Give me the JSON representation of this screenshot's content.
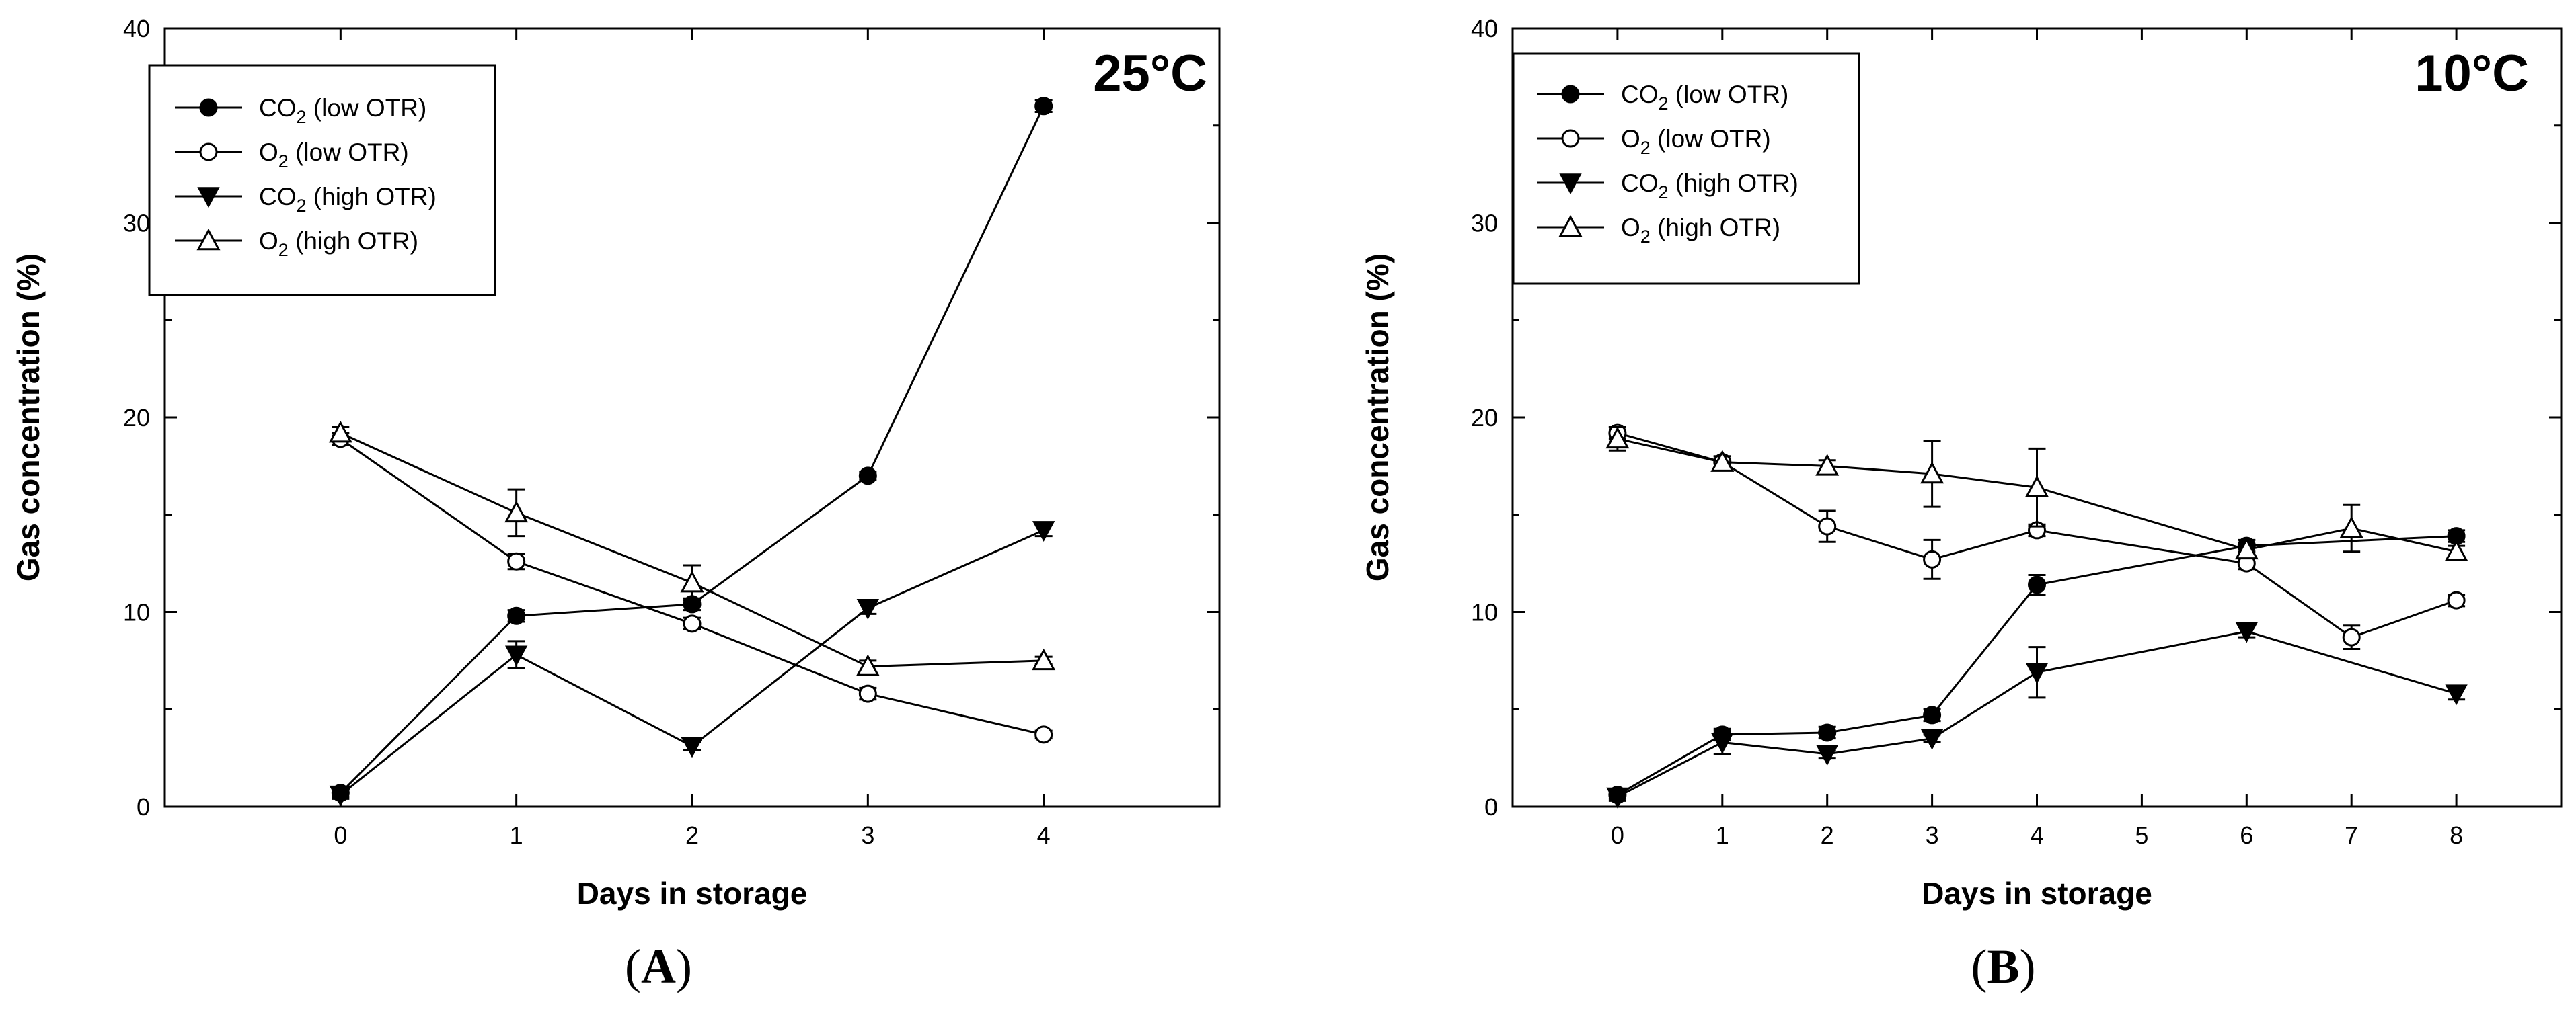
{
  "chart_data": [
    {
      "type": "line",
      "panel_label": "A",
      "panel_letter": "A",
      "annotation": "25°C",
      "xlabel": "Days in storage",
      "ylabel": "Gas concentration (%)",
      "xlim": [
        -1,
        5
      ],
      "ylim": [
        0,
        40
      ],
      "x_ticks": [
        0,
        1,
        2,
        3,
        4
      ],
      "y_ticks": [
        0,
        10,
        20,
        30,
        40
      ],
      "legend": [
        "CO2 (low OTR)",
        "O2 (low OTR)",
        "CO2 (high OTR)",
        "O2 (high OTR)"
      ],
      "legend_parts": [
        {
          "gas": "CO",
          "sub": "2",
          "rest": " (low OTR)"
        },
        {
          "gas": "O",
          "sub": "2",
          "rest": " (low OTR)"
        },
        {
          "gas": "CO",
          "sub": "2",
          "rest": " (high OTR)"
        },
        {
          "gas": "O",
          "sub": "2",
          "rest": " (high OTR)"
        }
      ],
      "series": [
        {
          "name": "CO2 (low OTR)",
          "marker": "circle-filled",
          "x": [
            0,
            1,
            2,
            3,
            4
          ],
          "y": [
            0.7,
            9.8,
            10.4,
            17.0,
            36.0
          ],
          "err": [
            0.2,
            0.3,
            0.3,
            0.2,
            0.3
          ]
        },
        {
          "name": "O2 (low OTR)",
          "marker": "circle-open",
          "x": [
            0,
            1,
            2,
            3,
            4
          ],
          "y": [
            18.9,
            12.6,
            9.4,
            5.8,
            3.7
          ],
          "err": [
            0.3,
            0.4,
            0.3,
            0.3,
            0.2
          ]
        },
        {
          "name": "CO2 (high OTR)",
          "marker": "triangle-down-filled",
          "x": [
            0,
            1,
            2,
            3,
            4
          ],
          "y": [
            0.6,
            7.8,
            3.1,
            10.2,
            14.2
          ],
          "err": [
            0.2,
            0.7,
            0.2,
            0.3,
            0.3
          ]
        },
        {
          "name": "O2 (high OTR)",
          "marker": "triangle-up-open",
          "x": [
            0,
            1,
            2,
            3,
            4
          ],
          "y": [
            19.2,
            15.1,
            11.5,
            7.2,
            7.5
          ],
          "err": [
            0.3,
            1.2,
            0.9,
            0.3,
            0.2
          ]
        }
      ]
    },
    {
      "type": "line",
      "panel_label": "B",
      "panel_letter": "B",
      "annotation": "10°C",
      "xlabel": "Days in storage",
      "ylabel": "Gas concentration (%)",
      "xlim": [
        -1,
        9
      ],
      "ylim": [
        0,
        40
      ],
      "x_ticks": [
        0,
        1,
        2,
        3,
        4,
        5,
        6,
        7,
        8
      ],
      "y_ticks": [
        0,
        10,
        20,
        30,
        40
      ],
      "legend": [
        "CO2 (low OTR)",
        "O2 (low OTR)",
        "CO2 (high OTR)",
        "O2 (high OTR)"
      ],
      "legend_parts": [
        {
          "gas": "CO",
          "sub": "2",
          "rest": " (low OTR)"
        },
        {
          "gas": "O",
          "sub": "2",
          "rest": " (low OTR)"
        },
        {
          "gas": "CO",
          "sub": "2",
          "rest": " (high OTR)"
        },
        {
          "gas": "O",
          "sub": "2",
          "rest": " (high OTR)"
        }
      ],
      "series": [
        {
          "name": "CO2 (low OTR)",
          "marker": "circle-filled",
          "x": [
            0,
            1,
            2,
            3,
            4,
            6,
            8
          ],
          "y": [
            0.6,
            3.7,
            3.8,
            4.7,
            11.4,
            13.4,
            13.9
          ],
          "err": [
            0.2,
            0.3,
            0.3,
            0.3,
            0.5,
            0.3,
            0.3
          ]
        },
        {
          "name": "O2 (low OTR)",
          "marker": "circle-open",
          "x": [
            0,
            1,
            2,
            3,
            4,
            6,
            7,
            8
          ],
          "y": [
            19.2,
            17.7,
            14.4,
            12.7,
            14.2,
            12.5,
            8.7,
            10.6
          ],
          "err": [
            0.3,
            0.3,
            0.8,
            1.0,
            0.3,
            0.3,
            0.6,
            0.3
          ]
        },
        {
          "name": "CO2 (high OTR)",
          "marker": "triangle-down-filled",
          "x": [
            0,
            1,
            2,
            3,
            4,
            6,
            8
          ],
          "y": [
            0.5,
            3.3,
            2.7,
            3.5,
            6.9,
            9.0,
            5.8
          ],
          "err": [
            0.2,
            0.6,
            0.2,
            0.2,
            1.3,
            0.3,
            0.3
          ]
        },
        {
          "name": "O2 (high OTR)",
          "marker": "triangle-up-open",
          "x": [
            0,
            1,
            2,
            3,
            4,
            6,
            7,
            8
          ],
          "y": [
            18.9,
            17.7,
            17.5,
            17.1,
            16.4,
            13.2,
            14.3,
            13.1
          ],
          "err": [
            0.6,
            0.3,
            0.3,
            1.7,
            2.0,
            0.3,
            1.2,
            0.3
          ]
        }
      ]
    }
  ]
}
